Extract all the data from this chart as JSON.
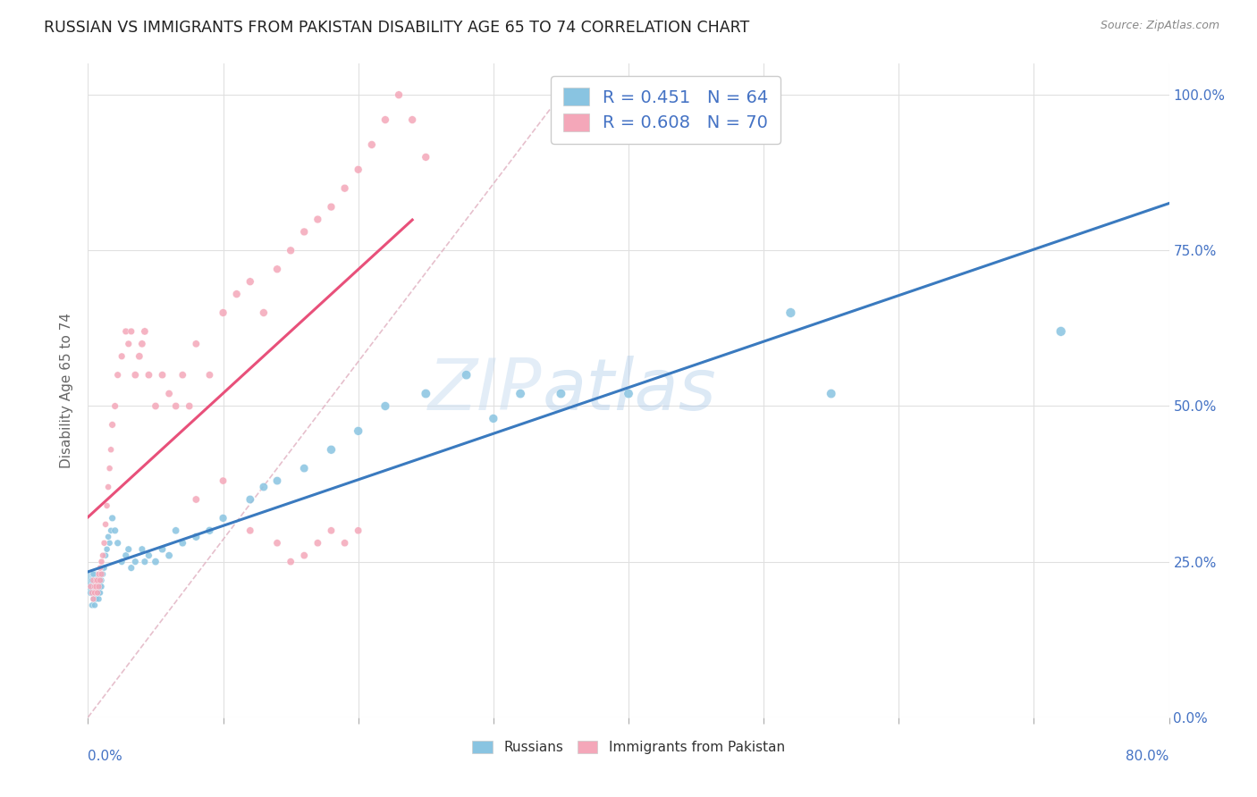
{
  "title": "RUSSIAN VS IMMIGRANTS FROM PAKISTAN DISABILITY AGE 65 TO 74 CORRELATION CHART",
  "source": "Source: ZipAtlas.com",
  "ylabel": "Disability Age 65 to 74",
  "watermark": "ZIPatlas",
  "color_russian": "#89c4e1",
  "color_pakistan": "#f4a7b9",
  "color_russian_line": "#3a7abf",
  "color_pakistan_line": "#e8507a",
  "color_axis_label": "#4472c4",
  "color_title": "#222222",
  "color_source": "#888888",
  "bg_color": "#ffffff",
  "grid_color": "#e0e0e0",
  "xmin": 0.0,
  "xmax": 0.8,
  "ymin": 0.0,
  "ymax": 1.05,
  "russian_x": [
    0.002,
    0.003,
    0.003,
    0.004,
    0.004,
    0.004,
    0.005,
    0.005,
    0.005,
    0.006,
    0.006,
    0.006,
    0.007,
    0.007,
    0.007,
    0.008,
    0.008,
    0.008,
    0.009,
    0.009,
    0.01,
    0.01,
    0.011,
    0.012,
    0.013,
    0.014,
    0.015,
    0.016,
    0.017,
    0.018,
    0.02,
    0.022,
    0.025,
    0.028,
    0.03,
    0.032,
    0.035,
    0.04,
    0.042,
    0.045,
    0.05,
    0.055,
    0.06,
    0.065,
    0.07,
    0.08,
    0.09,
    0.1,
    0.12,
    0.13,
    0.14,
    0.16,
    0.18,
    0.2,
    0.22,
    0.25,
    0.28,
    0.3,
    0.32,
    0.35,
    0.4,
    0.52,
    0.55,
    0.72
  ],
  "russian_y": [
    0.2,
    0.22,
    0.18,
    0.21,
    0.19,
    0.23,
    0.2,
    0.18,
    0.22,
    0.19,
    0.21,
    0.2,
    0.22,
    0.2,
    0.21,
    0.19,
    0.22,
    0.2,
    0.21,
    0.2,
    0.22,
    0.21,
    0.23,
    0.24,
    0.26,
    0.27,
    0.29,
    0.28,
    0.3,
    0.32,
    0.3,
    0.28,
    0.25,
    0.26,
    0.27,
    0.24,
    0.25,
    0.27,
    0.25,
    0.26,
    0.25,
    0.27,
    0.26,
    0.3,
    0.28,
    0.29,
    0.3,
    0.32,
    0.35,
    0.37,
    0.38,
    0.4,
    0.43,
    0.46,
    0.5,
    0.52,
    0.55,
    0.48,
    0.52,
    0.52,
    0.52,
    0.65,
    0.52,
    0.62
  ],
  "russian_size": [
    30,
    25,
    25,
    25,
    25,
    25,
    25,
    25,
    25,
    25,
    25,
    25,
    25,
    25,
    25,
    25,
    25,
    25,
    25,
    25,
    25,
    25,
    25,
    25,
    25,
    25,
    25,
    25,
    25,
    30,
    30,
    30,
    30,
    30,
    30,
    30,
    30,
    30,
    30,
    30,
    35,
    35,
    35,
    35,
    35,
    40,
    40,
    40,
    45,
    45,
    45,
    45,
    50,
    50,
    50,
    55,
    55,
    50,
    55,
    55,
    55,
    60,
    55,
    60
  ],
  "russian_big_x": [
    0.003
  ],
  "russian_big_y": [
    0.22
  ],
  "russian_big_size": [
    300
  ],
  "pakistan_x": [
    0.002,
    0.003,
    0.004,
    0.004,
    0.005,
    0.005,
    0.006,
    0.006,
    0.007,
    0.007,
    0.008,
    0.008,
    0.009,
    0.009,
    0.01,
    0.01,
    0.011,
    0.012,
    0.013,
    0.014,
    0.015,
    0.016,
    0.017,
    0.018,
    0.02,
    0.022,
    0.025,
    0.028,
    0.03,
    0.032,
    0.035,
    0.038,
    0.04,
    0.042,
    0.045,
    0.05,
    0.055,
    0.06,
    0.065,
    0.07,
    0.075,
    0.08,
    0.09,
    0.1,
    0.11,
    0.12,
    0.13,
    0.14,
    0.15,
    0.16,
    0.17,
    0.18,
    0.19,
    0.2,
    0.21,
    0.22,
    0.23,
    0.24,
    0.25,
    0.08,
    0.1,
    0.12,
    0.14,
    0.15,
    0.16,
    0.17,
    0.18,
    0.19,
    0.2
  ],
  "pakistan_y": [
    0.21,
    0.2,
    0.22,
    0.19,
    0.21,
    0.2,
    0.22,
    0.21,
    0.2,
    0.22,
    0.21,
    0.23,
    0.22,
    0.24,
    0.23,
    0.25,
    0.26,
    0.28,
    0.31,
    0.34,
    0.37,
    0.4,
    0.43,
    0.47,
    0.5,
    0.55,
    0.58,
    0.62,
    0.6,
    0.62,
    0.55,
    0.58,
    0.6,
    0.62,
    0.55,
    0.5,
    0.55,
    0.52,
    0.5,
    0.55,
    0.5,
    0.6,
    0.55,
    0.65,
    0.68,
    0.7,
    0.65,
    0.72,
    0.75,
    0.78,
    0.8,
    0.82,
    0.85,
    0.88,
    0.92,
    0.96,
    1.0,
    0.96,
    0.9,
    0.35,
    0.38,
    0.3,
    0.28,
    0.25,
    0.26,
    0.28,
    0.3,
    0.28,
    0.3
  ],
  "pakistan_big_x": [
    0.003
  ],
  "pakistan_big_y": [
    0.21
  ],
  "pakistan_big_size": [
    200
  ],
  "pakistan_size": [
    25,
    25,
    25,
    25,
    25,
    25,
    25,
    25,
    25,
    25,
    25,
    25,
    25,
    25,
    25,
    25,
    25,
    25,
    25,
    25,
    25,
    25,
    25,
    30,
    30,
    30,
    30,
    30,
    30,
    30,
    35,
    35,
    35,
    35,
    35,
    35,
    35,
    35,
    35,
    35,
    35,
    35,
    35,
    40,
    40,
    40,
    40,
    40,
    40,
    40,
    40,
    40,
    40,
    40,
    40,
    40,
    40,
    40,
    40,
    35,
    35,
    35,
    35,
    35,
    35,
    35,
    35,
    35,
    35
  ]
}
